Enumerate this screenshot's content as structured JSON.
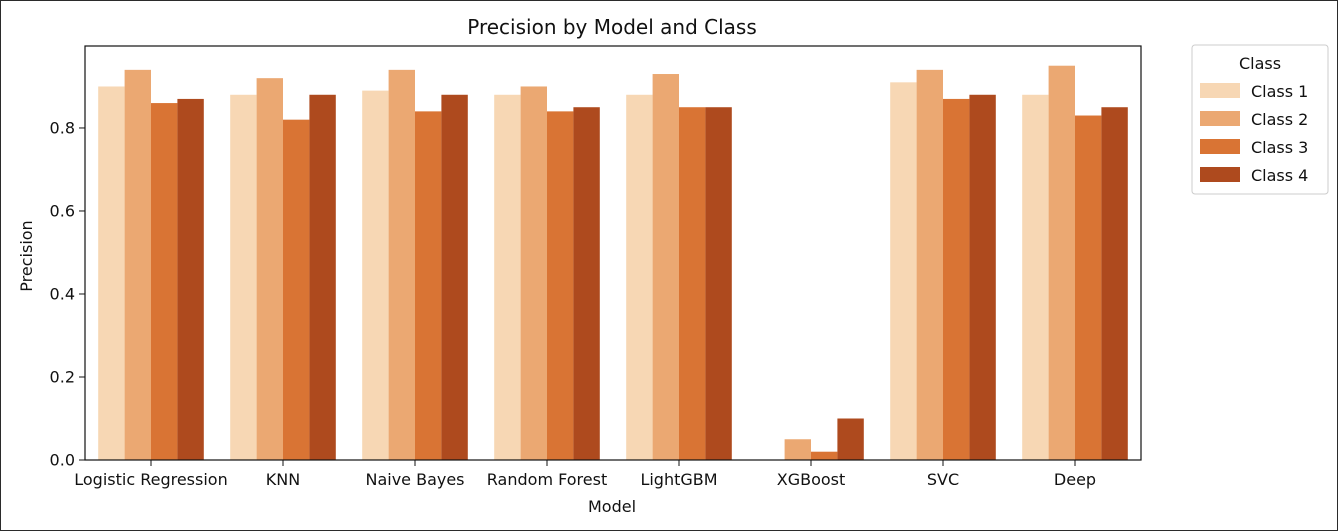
{
  "chart_data": {
    "type": "bar",
    "title": "Precision by Model and Class",
    "xlabel": "Model",
    "ylabel": "Precision",
    "categories": [
      "Logistic Regression",
      "KNN",
      "Naive Bayes",
      "Random Forest",
      "LightGBM",
      "XGBoost",
      "SVC",
      "Deep"
    ],
    "series": [
      {
        "name": "Class 1",
        "values": [
          0.9,
          0.88,
          0.89,
          0.88,
          0.88,
          0.0,
          0.91,
          0.88
        ]
      },
      {
        "name": "Class 2",
        "values": [
          0.94,
          0.92,
          0.94,
          0.9,
          0.93,
          0.05,
          0.94,
          0.95
        ]
      },
      {
        "name": "Class 3",
        "values": [
          0.86,
          0.82,
          0.84,
          0.84,
          0.85,
          0.02,
          0.87,
          0.83
        ]
      },
      {
        "name": "Class 4",
        "values": [
          0.87,
          0.88,
          0.88,
          0.85,
          0.85,
          0.1,
          0.88,
          0.85
        ]
      }
    ],
    "colors": [
      "#f7d7b4",
      "#eba872",
      "#d97434",
      "#ae4a1e"
    ],
    "ylim": [
      0,
      0.9975
    ],
    "yticks": [
      "0.0",
      "0.2",
      "0.4",
      "0.6",
      "0.8"
    ],
    "grid": false,
    "legend": {
      "title": "Class",
      "placement": "outside-top-right"
    }
  }
}
